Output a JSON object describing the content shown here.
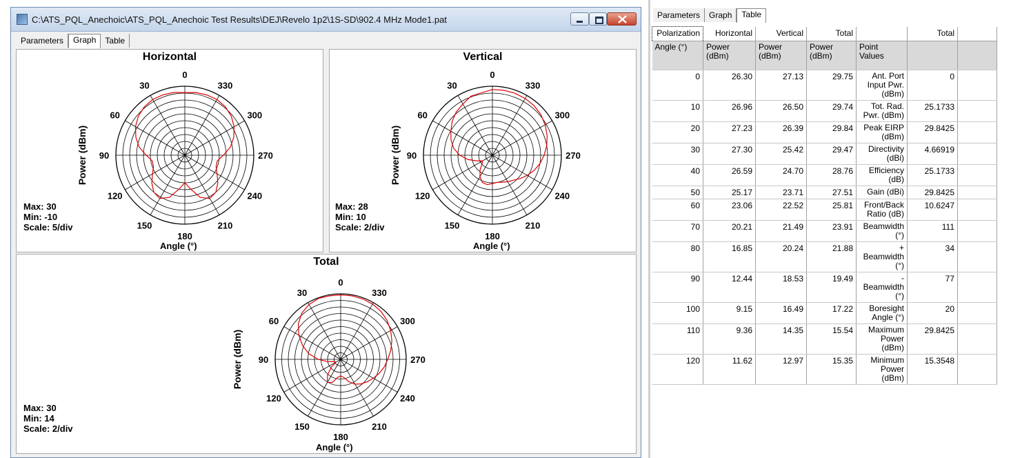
{
  "window": {
    "title": "C:\\ATS_PQL_Anechoic\\ATS_PQL_Anechoic Test Results\\DEJ\\Revelo 1p2\\1S-SD\\902.4 MHz Mode1.pat",
    "tabs": [
      "Parameters",
      "Graph",
      "Table"
    ],
    "active_tab": "Graph"
  },
  "colors": {
    "trace": "#dd0000",
    "grid": "#000000",
    "header_bg": "#d9d9d9"
  },
  "chart_data": [
    {
      "type": "polar",
      "title": "Horizontal",
      "radial_label": "Power  (dBm)",
      "angular_label": "Angle  (°)",
      "angle_ticks": [
        "0",
        "30",
        "60",
        "90",
        "120",
        "150",
        "180",
        "210",
        "240",
        "270",
        "300",
        "330"
      ],
      "stats": {
        "max": "Max: 30",
        "min": "Min: -10",
        "scale": "Scale: 5/div"
      },
      "rmin": -10,
      "rmax": 30,
      "angles": [
        0,
        10,
        20,
        30,
        40,
        50,
        60,
        70,
        80,
        90,
        100,
        110,
        120,
        130,
        140,
        150,
        160,
        170,
        180,
        190,
        200,
        210,
        220,
        230,
        240,
        250,
        260,
        270,
        280,
        290,
        300,
        310,
        320,
        330,
        340,
        350
      ],
      "values": [
        26.3,
        26.96,
        27.23,
        27.3,
        26.59,
        25.17,
        23.06,
        20.21,
        16.85,
        12.44,
        9.15,
        9.36,
        11.62,
        15,
        18,
        19,
        16,
        10,
        6,
        10,
        16,
        19,
        18,
        15,
        11.6,
        9.3,
        9.1,
        12.4,
        16.8,
        20.2,
        23,
        25.2,
        26.6,
        27.3,
        27.2,
        26.9
      ]
    },
    {
      "type": "polar",
      "title": "Vertical",
      "radial_label": "Power  (dBm)",
      "angular_label": "Angle  (°)",
      "angle_ticks": [
        "0",
        "30",
        "60",
        "90",
        "120",
        "150",
        "180",
        "210",
        "240",
        "270",
        "300",
        "330"
      ],
      "stats": {
        "max": "Max: 28",
        "min": "Min: 10",
        "scale": "Scale: 2/div"
      },
      "rmin": 10,
      "rmax": 28,
      "angles": [
        0,
        10,
        20,
        30,
        40,
        50,
        60,
        70,
        80,
        90,
        100,
        110,
        120,
        130,
        140,
        150,
        160,
        170,
        180,
        190,
        200,
        210,
        220,
        230,
        240,
        250,
        260,
        270,
        280,
        290,
        300,
        310,
        320,
        330,
        340,
        350
      ],
      "values": [
        27.13,
        26.5,
        26.39,
        25.42,
        24.7,
        23.71,
        22.52,
        21.49,
        20.24,
        18.53,
        16.49,
        14.35,
        12.97,
        13.5,
        15,
        16.5,
        17.6,
        17.8,
        17.4,
        17.2,
        17.5,
        18,
        18.5,
        19.5,
        20.5,
        21.6,
        22.6,
        23.5,
        24.4,
        25.2,
        25.9,
        26.5,
        26.9,
        27.1,
        27.2,
        27.2
      ]
    },
    {
      "type": "polar",
      "title": "Total",
      "radial_label": "Power  (dBm)",
      "angular_label": "Angle  (°)",
      "angle_ticks": [
        "0",
        "30",
        "60",
        "90",
        "120",
        "150",
        "180",
        "210",
        "240",
        "270",
        "300",
        "330"
      ],
      "stats": {
        "max": "Max: 30",
        "min": "Min: 14",
        "scale": "Scale: 2/div"
      },
      "rmin": 14,
      "rmax": 30,
      "angles": [
        0,
        10,
        20,
        30,
        40,
        50,
        60,
        70,
        80,
        90,
        100,
        110,
        120,
        130,
        140,
        150,
        160,
        170,
        180,
        190,
        200,
        210,
        220,
        230,
        240,
        250,
        260,
        270,
        280,
        290,
        300,
        310,
        320,
        330,
        340,
        350
      ],
      "values": [
        29.75,
        29.74,
        29.84,
        29.47,
        28.76,
        27.51,
        25.81,
        23.91,
        21.88,
        19.49,
        17.22,
        15.54,
        15.35,
        17,
        19,
        20.5,
        20,
        18.5,
        18,
        18.5,
        19.8,
        21,
        21.8,
        22.5,
        23.2,
        24,
        24.8,
        25.5,
        26.4,
        27.3,
        28.1,
        28.8,
        29.3,
        29.6,
        29.7,
        29.75
      ]
    }
  ],
  "right_panel": {
    "tabs": [
      "Parameters",
      "Graph",
      "Table"
    ],
    "active_tab": "Table",
    "header_row1": [
      "Polarization",
      "Horizontal",
      "Vertical",
      "Total",
      "",
      "Total"
    ],
    "header_row2": [
      "Angle (°)",
      "Power\n(dBm)",
      "Power\n(dBm)",
      "Power\n(dBm)",
      "Point\nValues",
      ""
    ],
    "rows": [
      {
        "angle": "0",
        "h": "26.30",
        "v": "27.13",
        "t": "29.75",
        "label": "Ant. Port\nInput Pwr.\n(dBm)",
        "value": "0"
      },
      {
        "angle": "10",
        "h": "26.96",
        "v": "26.50",
        "t": "29.74",
        "label": "Tot. Rad.\nPwr. (dBm)",
        "value": "25.1733"
      },
      {
        "angle": "20",
        "h": "27.23",
        "v": "26.39",
        "t": "29.84",
        "label": "Peak EIRP\n(dBm)",
        "value": "29.8425"
      },
      {
        "angle": "30",
        "h": "27.30",
        "v": "25.42",
        "t": "29.47",
        "label": "Directivity\n(dBi)",
        "value": "4.66919"
      },
      {
        "angle": "40",
        "h": "26.59",
        "v": "24.70",
        "t": "28.76",
        "label": "Efficiency\n(dB)",
        "value": "25.1733"
      },
      {
        "angle": "50",
        "h": "25.17",
        "v": "23.71",
        "t": "27.51",
        "label": "Gain (dBi)",
        "value": "29.8425"
      },
      {
        "angle": "60",
        "h": "23.06",
        "v": "22.52",
        "t": "25.81",
        "label": "Front/Back\nRatio (dB)",
        "value": "10.6247"
      },
      {
        "angle": "70",
        "h": "20.21",
        "v": "21.49",
        "t": "23.91",
        "label": "Beamwidth\n(°)",
        "value": "111"
      },
      {
        "angle": "80",
        "h": "16.85",
        "v": "20.24",
        "t": "21.88",
        "label": "+\nBeamwidth\n(°)",
        "value": "34"
      },
      {
        "angle": "90",
        "h": "12.44",
        "v": "18.53",
        "t": "19.49",
        "label": "-\nBeamwidth\n(°)",
        "value": "77"
      },
      {
        "angle": "100",
        "h": "9.15",
        "v": "16.49",
        "t": "17.22",
        "label": "Boresight\nAngle (°)",
        "value": "20"
      },
      {
        "angle": "110",
        "h": "9.36",
        "v": "14.35",
        "t": "15.54",
        "label": "Maximum\nPower\n(dBm)",
        "value": "29.8425"
      },
      {
        "angle": "120",
        "h": "11.62",
        "v": "12.97",
        "t": "15.35",
        "label": "Minimum\nPower\n(dBm)",
        "value": "15.3548"
      }
    ]
  }
}
